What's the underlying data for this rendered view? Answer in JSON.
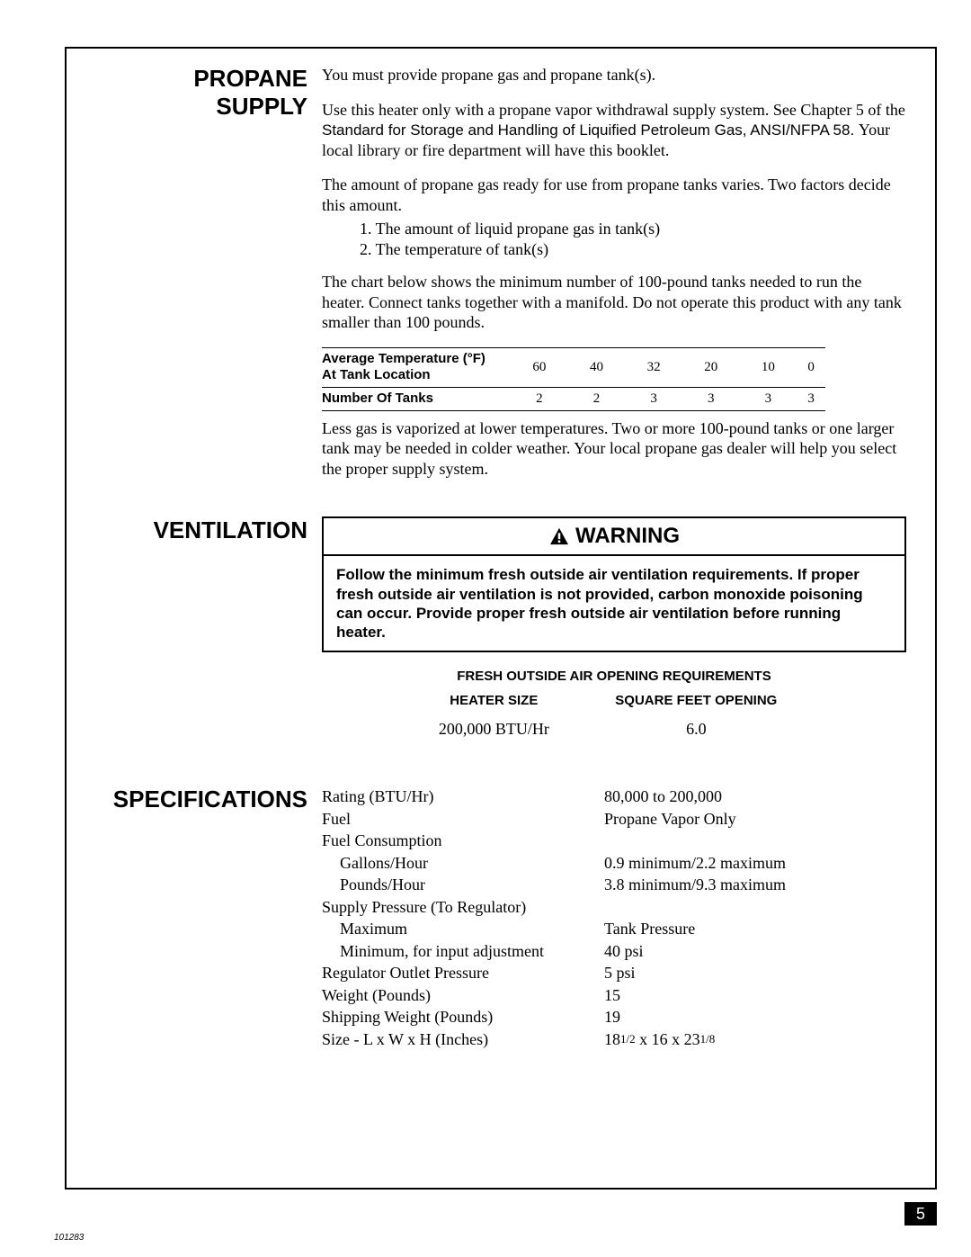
{
  "sections": {
    "propane": {
      "heading1": "PROPANE",
      "heading2": "SUPPLY",
      "p1": "You must provide propane gas and propane tank(s).",
      "p2a": "Use this heater only with a propane vapor withdrawal supply system. See Chapter 5 of the ",
      "p2b": "Standard for Storage and Handling of Liquified Petroleum Gas, ANSI/NFPA 58. ",
      "p2c": "Your local library or fire department will have this booklet.",
      "p3": "The amount of propane gas ready for use from propane tanks varies. Two factors decide this amount.",
      "li1": "1.  The amount of liquid propane gas in tank(s)",
      "li2": "2.  The temperature of tank(s)",
      "p4": "The chart below shows the minimum number of 100-pound tanks needed to run the heater. Connect tanks together with a manifold. Do not operate this product with any tank smaller than 100 pounds.",
      "tank_table": {
        "row1_label1": "Average Temperature (°F)",
        "row1_label2": "At Tank Location",
        "row2_label": "Number Of Tanks",
        "temps": [
          "60",
          "40",
          "32",
          "20",
          "10",
          "0"
        ],
        "tanks": [
          "2",
          "2",
          "3",
          "3",
          "3",
          "3"
        ]
      },
      "p5": "Less gas is vaporized at lower temperatures. Two or more 100-pound tanks or one larger tank may be needed in colder weather. Your local propane gas dealer will help you select the proper supply system."
    },
    "ventilation": {
      "heading": "VENTILATION",
      "warn_title": "WARNING",
      "warn_body": "Follow the minimum fresh outside air ventilation requirements. If proper fresh outside air ventilation is not provided, carbon monoxide poisoning can occur. Provide proper fresh outside air ventilation before running heater.",
      "air_title": "FRESH OUTSIDE AIR OPENING REQUIREMENTS",
      "col1": "HEATER SIZE",
      "col2": "SQUARE FEET OPENING",
      "v1": "200,000 BTU/Hr",
      "v2": "6.0"
    },
    "specs": {
      "heading": "SPECIFICATIONS",
      "rows": [
        {
          "l": "Rating (BTU/Hr)",
          "v": "80,000 to 200,000",
          "i": 0
        },
        {
          "l": "Fuel",
          "v": "Propane Vapor Only",
          "i": 0
        },
        {
          "l": "Fuel Consumption",
          "v": "",
          "i": 0
        },
        {
          "l": "Gallons/Hour",
          "v": "0.9 minimum/2.2 maximum",
          "i": 1
        },
        {
          "l": "Pounds/Hour",
          "v": "3.8 minimum/9.3 maximum",
          "i": 1
        },
        {
          "l": "Supply Pressure (To Regulator)",
          "v": "",
          "i": 0
        },
        {
          "l": "Maximum",
          "v": "Tank Pressure",
          "i": 1
        },
        {
          "l": "Minimum, for input adjustment",
          "v": "40 psi",
          "i": 1
        },
        {
          "l": "Regulator Outlet Pressure",
          "v": "5 psi",
          "i": 0
        },
        {
          "l": "Weight (Pounds)",
          "v": "15",
          "i": 0
        },
        {
          "l": "Shipping Weight (Pounds)",
          "v": "19",
          "i": 0
        }
      ],
      "size_label": "Size - L x W x H (Inches)",
      "size_a": "18",
      "size_af": "1/2",
      "size_mid": " x 16 x 23",
      "size_bf": "1/8"
    }
  },
  "page_number": "5",
  "doc_id": "101283"
}
